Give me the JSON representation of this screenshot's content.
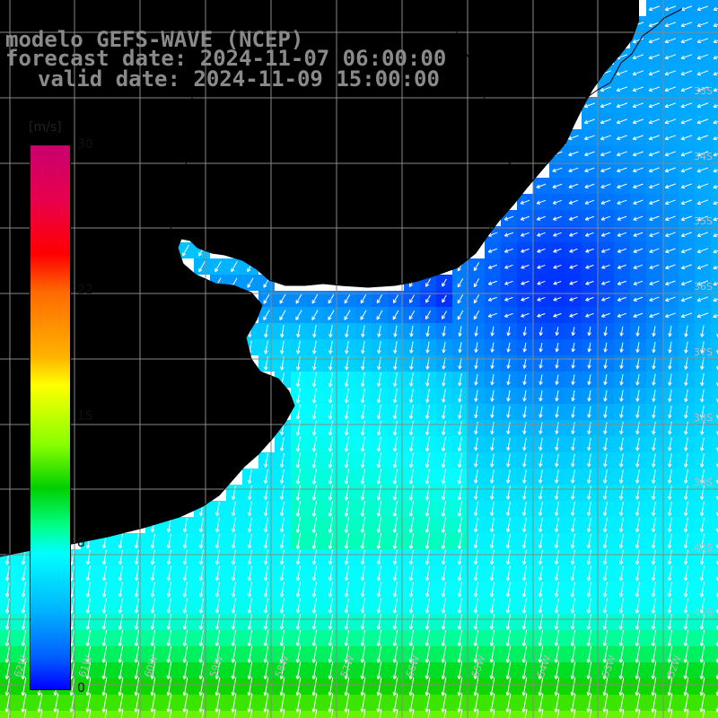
{
  "title": {
    "model": "modelo GEFS-WAVE (NCEP)",
    "forecast": "forecast date: 2024-11-07 06:00:00",
    "valid": "valid date: 2024-11-09 15:00:00"
  },
  "colorbar": {
    "units": "[m/s]",
    "ticks": [
      {
        "label": "30",
        "value": 30
      },
      {
        "label": "22",
        "value": 22
      },
      {
        "label": "15",
        "value": 15
      },
      {
        "label": "8",
        "value": 8
      },
      {
        "label": "0",
        "value": 0
      }
    ]
  },
  "grid": {
    "lat_labels": [
      "33S",
      "34S",
      "35S",
      "36S",
      "37S",
      "38S",
      "39S",
      "40S",
      "41S"
    ],
    "lon_labels": [
      "62W",
      "61W",
      "60W",
      "59W",
      "58W",
      "57W",
      "56W",
      "55W",
      "54W",
      "53W",
      "52W"
    ]
  },
  "colors": {
    "background": "#ffffff",
    "land": "#ffffff",
    "coastline": "#000000",
    "gridline": "#888888",
    "arrow": "#ffffff",
    "title_text": "#8a8a8a"
  }
}
